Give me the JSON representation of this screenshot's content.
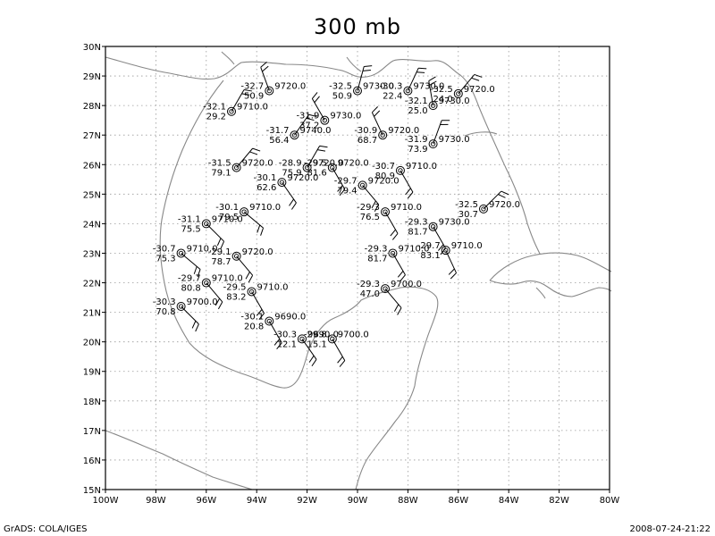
{
  "title": "300 mb",
  "footer": {
    "left": "GrADS: COLA/IGES",
    "right": "2008-07-24-21:22"
  },
  "axes": {
    "x_ticks": [
      "100W",
      "98W",
      "96W",
      "94W",
      "92W",
      "90W",
      "88W",
      "86W",
      "84W",
      "82W",
      "80W"
    ],
    "y_ticks": [
      "15N",
      "16N",
      "17N",
      "18N",
      "19N",
      "20N",
      "21N",
      "22N",
      "23N",
      "24N",
      "25N",
      "26N",
      "27N",
      "28N",
      "29N",
      "30N"
    ],
    "lon_range": [
      -100,
      -80
    ],
    "lat_range": [
      15,
      30
    ],
    "grid": true
  },
  "stations": [
    {
      "lon": -93.5,
      "lat": 28.5,
      "temp": "-32.7",
      "rh": "50.9",
      "pres": "9720.0"
    },
    {
      "lon": -90.0,
      "lat": 28.5,
      "temp": "-32.5",
      "rh": "50.9",
      "pres": "9730.0"
    },
    {
      "lon": -88.0,
      "lat": 28.5,
      "temp": "-30.3",
      "rh": "22.4",
      "pres": "9730.0"
    },
    {
      "lon": -86.0,
      "lat": 28.4,
      "temp": "-32.5",
      "rh": "24.0",
      "pres": "9720.0"
    },
    {
      "lon": -87.0,
      "lat": 28.0,
      "temp": "-32.1",
      "rh": "25.0",
      "pres": "9730.0"
    },
    {
      "lon": -95.0,
      "lat": 27.8,
      "temp": "-32.1",
      "rh": "29.2",
      "pres": "9710.0"
    },
    {
      "lon": -91.3,
      "lat": 27.5,
      "temp": "-31.9",
      "rh": "37.2",
      "pres": "9730.0"
    },
    {
      "lon": -92.5,
      "lat": 27.0,
      "temp": "-31.7",
      "rh": "56.4",
      "pres": "9740.0"
    },
    {
      "lon": -89.0,
      "lat": 27.0,
      "temp": "-30.9",
      "rh": "68.7",
      "pres": "9720.0"
    },
    {
      "lon": -87.0,
      "lat": 26.7,
      "temp": "-31.9",
      "rh": "73.9",
      "pres": "9730.0"
    },
    {
      "lon": -94.8,
      "lat": 25.9,
      "temp": "-31.5",
      "rh": "79.1",
      "pres": "9720.0"
    },
    {
      "lon": -92.0,
      "lat": 25.9,
      "temp": "-28.9",
      "rh": "75.9",
      "pres": "9720.0"
    },
    {
      "lon": -91.0,
      "lat": 25.9,
      "temp": "-29.5",
      "rh": "81.6",
      "pres": "9720.0"
    },
    {
      "lon": -88.3,
      "lat": 25.8,
      "temp": "-30.7",
      "rh": "80.9",
      "pres": "9710.0"
    },
    {
      "lon": -93.0,
      "lat": 25.4,
      "temp": "-30.1",
      "rh": "62.6",
      "pres": "9720.0"
    },
    {
      "lon": -89.8,
      "lat": 25.3,
      "temp": "-29.7",
      "rh": "79.4",
      "pres": "9720.0"
    },
    {
      "lon": -94.5,
      "lat": 24.4,
      "temp": "-30.1",
      "rh": "79.5",
      "pres": "9710.0"
    },
    {
      "lon": -88.9,
      "lat": 24.4,
      "temp": "-29.3",
      "rh": "76.5",
      "pres": "9710.0"
    },
    {
      "lon": -85.0,
      "lat": 24.5,
      "temp": "-32.5",
      "rh": "30.7",
      "pres": "9720.0"
    },
    {
      "lon": -96.0,
      "lat": 24.0,
      "temp": "-31.1",
      "rh": "75.5",
      "pres": "9710.0"
    },
    {
      "lon": -87.0,
      "lat": 23.9,
      "temp": "-29.3",
      "rh": "81.7",
      "pres": "9730.0"
    },
    {
      "lon": -97.0,
      "lat": 23.0,
      "temp": "-30.7",
      "rh": "75.3",
      "pres": "9710.0"
    },
    {
      "lon": -94.8,
      "lat": 22.9,
      "temp": "-29.1",
      "rh": "78.7",
      "pres": "9720.0"
    },
    {
      "lon": -88.6,
      "lat": 23.0,
      "temp": "-29.3",
      "rh": "81.7",
      "pres": "9710.0"
    },
    {
      "lon": -86.5,
      "lat": 23.1,
      "temp": "-29.7",
      "rh": "83.1",
      "pres": "9710.0"
    },
    {
      "lon": -96.0,
      "lat": 22.0,
      "temp": "-29.7",
      "rh": "80.8",
      "pres": "9710.0"
    },
    {
      "lon": -94.2,
      "lat": 21.7,
      "temp": "-29.5",
      "rh": "83.2",
      "pres": "9710.0"
    },
    {
      "lon": -88.9,
      "lat": 21.8,
      "temp": "-29.3",
      "rh": "47.0",
      "pres": "9700.0"
    },
    {
      "lon": -97.0,
      "lat": 21.2,
      "temp": "-30.3",
      "rh": "70.8",
      "pres": "9700.0"
    },
    {
      "lon": -93.5,
      "lat": 20.7,
      "temp": "-30.1",
      "rh": "20.8",
      "pres": "9690.0"
    },
    {
      "lon": -92.2,
      "lat": 20.1,
      "temp": "-30.3",
      "rh": "12.1",
      "pres": "9690.0"
    },
    {
      "lon": -91.0,
      "lat": 20.1,
      "temp": "-29.8",
      "rh": "15.1",
      "pres": "9700.0"
    }
  ],
  "colors": {
    "line": "#000000",
    "coast": "#888888",
    "grid": "#999999"
  }
}
